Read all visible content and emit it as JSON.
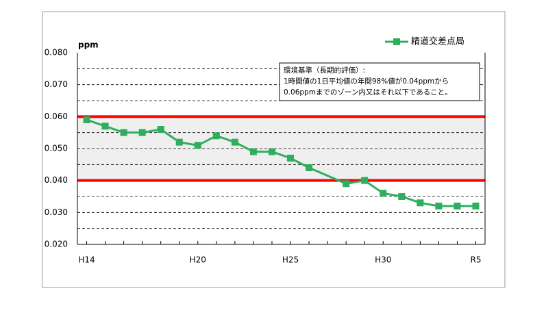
{
  "chart_data": {
    "type": "line",
    "y_label": "ppm",
    "categories": [
      "H14",
      null,
      null,
      null,
      null,
      null,
      "H20",
      null,
      null,
      null,
      null,
      "H25",
      null,
      null,
      null,
      null,
      "H30",
      null,
      null,
      null,
      null,
      "R5"
    ],
    "series": [
      {
        "name": "精道交差点局",
        "color": "#2eae5e",
        "values": [
          0.059,
          0.057,
          0.055,
          0.055,
          0.056,
          0.052,
          0.051,
          0.054,
          0.052,
          0.049,
          0.049,
          0.047,
          0.044,
          null,
          0.039,
          0.04,
          0.036,
          0.035,
          0.033,
          0.032,
          0.032,
          0.032
        ]
      }
    ],
    "ylim": [
      0.02,
      0.08
    ],
    "yticks": [
      {
        "value": 0.02,
        "label": "0.020"
      },
      {
        "value": 0.03,
        "label": "0.030"
      },
      {
        "value": 0.04,
        "label": "0.040"
      },
      {
        "value": 0.05,
        "label": "0.050"
      },
      {
        "value": 0.06,
        "label": "0.060"
      },
      {
        "value": 0.07,
        "label": "0.070"
      },
      {
        "value": 0.08,
        "label": "0.080"
      }
    ],
    "minor_yticks": [
      0.025,
      0.035,
      0.045,
      0.055,
      0.065,
      0.075
    ],
    "grid": true,
    "standard_band": {
      "range": [
        0.04,
        0.06
      ],
      "line_color": "#ff0000",
      "fill": "#efefef"
    },
    "annotation": [
      "環境基準（長期的評価）:",
      "1時間値の1日平均値の年間98%値が0.04ppmから",
      "0.06ppmまでのゾーン内又はそれ以下であること。"
    ],
    "legend": "top-right"
  }
}
